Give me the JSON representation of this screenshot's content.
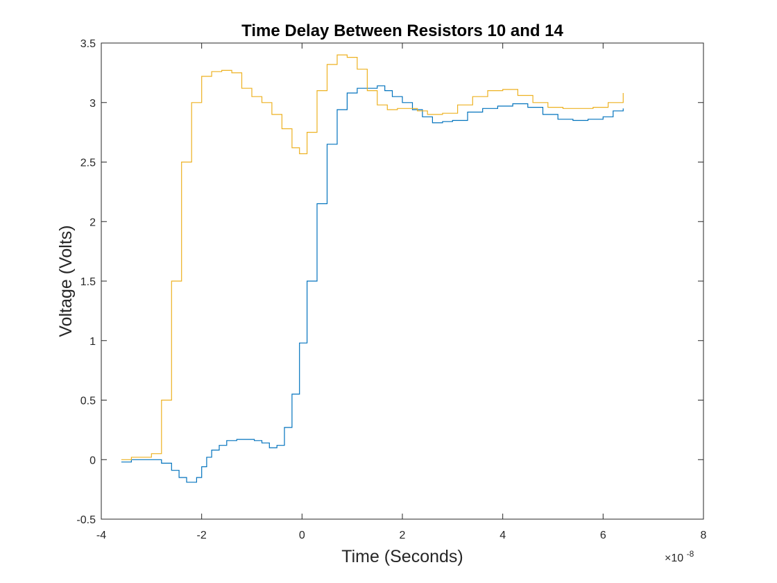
{
  "chart_data": {
    "type": "line",
    "title": "Time Delay Between Resistors 10 and 14",
    "xlabel": "Time (Seconds)",
    "ylabel": "Voltage (Volts)",
    "x_multiplier_label": "×10",
    "x_multiplier_exponent": "-8",
    "xlim": [
      -4,
      8
    ],
    "ylim": [
      -0.5,
      3.5
    ],
    "xticks": [
      -4,
      -2,
      0,
      2,
      4,
      6,
      8
    ],
    "xtick_labels": [
      "-4",
      "-2",
      "0",
      "2",
      "4",
      "6",
      "8"
    ],
    "yticks": [
      -0.5,
      0,
      0.5,
      1,
      1.5,
      2,
      2.5,
      3,
      3.5
    ],
    "ytick_labels": [
      "-0.5",
      "0",
      "0.5",
      "1",
      "1.5",
      "2",
      "2.5",
      "3",
      "3.5"
    ],
    "grid": false,
    "box": true,
    "series": [
      {
        "color": "#0072BD",
        "step": true,
        "x": [
          -3.6,
          -3.4,
          -3.1,
          -2.8,
          -2.6,
          -2.45,
          -2.3,
          -2.2,
          -2.1,
          -2.0,
          -1.9,
          -1.8,
          -1.65,
          -1.5,
          -1.3,
          -1.1,
          -0.95,
          -0.8,
          -0.65,
          -0.5,
          -0.35,
          -0.2,
          -0.05,
          0.1,
          0.3,
          0.5,
          0.7,
          0.9,
          1.1,
          1.3,
          1.5,
          1.65,
          1.8,
          2.0,
          2.2,
          2.4,
          2.6,
          2.8,
          3.0,
          3.3,
          3.6,
          3.9,
          4.2,
          4.5,
          4.8,
          5.1,
          5.4,
          5.7,
          6.0,
          6.2,
          6.4
        ],
        "values": [
          -0.02,
          0.0,
          0.0,
          -0.03,
          -0.09,
          -0.15,
          -0.19,
          -0.19,
          -0.15,
          -0.06,
          0.02,
          0.08,
          0.12,
          0.16,
          0.17,
          0.17,
          0.16,
          0.14,
          0.1,
          0.12,
          0.27,
          0.55,
          0.98,
          1.5,
          2.15,
          2.65,
          2.94,
          3.08,
          3.12,
          3.12,
          3.14,
          3.1,
          3.05,
          3.0,
          2.94,
          2.88,
          2.83,
          2.84,
          2.85,
          2.92,
          2.95,
          2.97,
          2.99,
          2.96,
          2.9,
          2.86,
          2.85,
          2.86,
          2.88,
          2.93,
          2.95
        ]
      },
      {
        "color": "#EDB120",
        "step": true,
        "x": [
          -3.6,
          -3.4,
          -3.1,
          -3.0,
          -2.8,
          -2.6,
          -2.4,
          -2.2,
          -2.0,
          -1.8,
          -1.6,
          -1.4,
          -1.2,
          -1.0,
          -0.8,
          -0.6,
          -0.4,
          -0.2,
          -0.05,
          0.1,
          0.3,
          0.5,
          0.7,
          0.9,
          1.1,
          1.3,
          1.5,
          1.7,
          1.9,
          2.1,
          2.3,
          2.5,
          2.8,
          3.1,
          3.4,
          3.7,
          4.0,
          4.3,
          4.6,
          4.9,
          5.2,
          5.5,
          5.8,
          6.1,
          6.4
        ],
        "values": [
          0.0,
          0.02,
          0.02,
          0.05,
          0.5,
          1.5,
          2.5,
          3.0,
          3.22,
          3.26,
          3.27,
          3.25,
          3.12,
          3.05,
          3.0,
          2.9,
          2.78,
          2.62,
          2.57,
          2.75,
          3.1,
          3.32,
          3.4,
          3.38,
          3.28,
          3.1,
          2.98,
          2.94,
          2.95,
          2.95,
          2.93,
          2.9,
          2.91,
          2.98,
          3.05,
          3.1,
          3.11,
          3.06,
          3.0,
          2.96,
          2.95,
          2.95,
          2.96,
          3.0,
          3.08
        ]
      }
    ]
  }
}
